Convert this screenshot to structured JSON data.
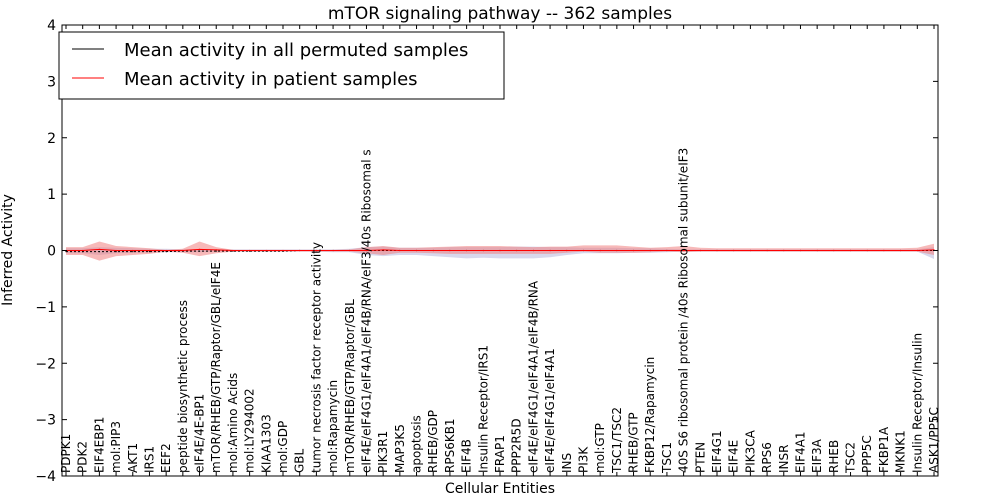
{
  "chart_data": {
    "type": "line",
    "title": "mTOR signaling pathway -- 362 samples",
    "xlabel": "Cellular Entities",
    "ylabel": "Inferred Activity",
    "ylim": [
      -4,
      4
    ],
    "yticks": [
      -4,
      -3,
      -2,
      -1,
      0,
      1,
      2,
      3,
      4
    ],
    "ytick_labels": [
      "−4",
      "−3",
      "−2",
      "−1",
      "0",
      "1",
      "2",
      "3",
      "4"
    ],
    "grid": false,
    "legend_position": "top-left",
    "categories": [
      "PDPK1",
      "PDK2",
      "EIF4EBP1",
      "mol:PIP3",
      "AKT1",
      "IRS1",
      "EEF2",
      "peptide biosynthetic process",
      "eIF4E/4E-BP1",
      "mTOR/RHEB/GTP/Raptor/GBL/eIF4E",
      "mol:Amino Acids",
      "mol:LY294002",
      "KIAA1303",
      "mol:GDP",
      "GBL",
      "tumor necrosis factor receptor activity",
      "mol:Rapamycin",
      "mTOR/RHEB/GTP/Raptor/GBL",
      "eIF4E/eIF4G1/eIF4A1/eIF4B/RNA/eIF3/40s Ribosomal s",
      "PIK3R1",
      "MAP3K5",
      "apoptosis",
      "RHEB/GDP",
      "RPS6KB1",
      "EIF4B",
      "Insulin Receptor/IRS1",
      "FRAP1",
      "PPP2R5D",
      "eIF4E/eIF4G1/eIF4A1/eIF4B/RNA",
      "eIF4E/eIF4G1/eIF4A1",
      "INS",
      "PI3K",
      "mol:GTP",
      "TSC1/TSC2",
      "RHEB/GTP",
      "FKBP12/Rapamycin",
      "TSC1",
      "40S S6 ribosomal protein /40s Ribosomal subunit/eIF3",
      "PTEN",
      "EIF4G1",
      "EIF4E",
      "PIK3CA",
      "RPS6",
      "INSR",
      "EIF4A1",
      "EIF3A",
      "RHEB",
      "TSC2",
      "PPP5C",
      "FKBP1A",
      "MKNK1",
      "Insulin Receptor/Insulin",
      "ASK1/PP5C"
    ],
    "series": [
      {
        "name": "Mean activity in all permuted samples",
        "color": "#000000",
        "values": [
          -0.02,
          -0.02,
          -0.02,
          -0.02,
          -0.02,
          -0.02,
          -0.02,
          -0.01,
          -0.01,
          -0.01,
          -0.01,
          -0.01,
          -0.01,
          -0.01,
          0,
          0,
          0,
          0,
          0,
          0,
          0,
          0,
          0,
          0,
          0,
          0,
          0,
          0,
          0,
          0,
          0,
          0,
          0,
          0,
          0,
          0,
          0,
          0,
          0,
          0,
          0,
          0,
          0,
          0,
          0,
          0,
          0,
          0,
          0,
          0,
          0,
          0,
          0
        ],
        "band": {
          "color": "#7f7fbf",
          "lower": [
            -0.05,
            -0.05,
            -0.08,
            -0.05,
            -0.04,
            -0.03,
            -0.03,
            -0.03,
            -0.03,
            -0.02,
            -0.02,
            -0.02,
            -0.02,
            -0.02,
            -0.02,
            -0.02,
            -0.03,
            -0.03,
            -0.08,
            -0.1,
            -0.08,
            -0.08,
            -0.1,
            -0.12,
            -0.14,
            -0.13,
            -0.14,
            -0.14,
            -0.14,
            -0.12,
            -0.08,
            -0.05,
            -0.05,
            -0.05,
            -0.04,
            -0.04,
            -0.03,
            -0.02,
            -0.02,
            -0.02,
            -0.02,
            -0.02,
            -0.02,
            -0.02,
            -0.02,
            -0.02,
            -0.02,
            -0.02,
            -0.02,
            -0.02,
            -0.02,
            -0.02,
            -0.15
          ],
          "upper": [
            0.04,
            0.04,
            0.06,
            0.05,
            0.04,
            0.03,
            0.03,
            0.02,
            0.02,
            0.02,
            0.02,
            0.02,
            0.02,
            0.02,
            0.02,
            0.02,
            0.02,
            0.03,
            0.06,
            0.07,
            0.05,
            0.05,
            0.05,
            0.06,
            0.06,
            0.06,
            0.06,
            0.07,
            0.07,
            0.06,
            0.06,
            0.05,
            0.05,
            0.05,
            0.04,
            0.04,
            0.03,
            0.02,
            0.02,
            0.02,
            0.02,
            0.02,
            0.02,
            0.02,
            0.02,
            0.02,
            0.02,
            0.02,
            0.02,
            0.02,
            0.02,
            0.02,
            0.06
          ]
        }
      },
      {
        "name": "Mean activity in patient samples",
        "color": "#ff0000",
        "values": [
          0,
          0,
          0.02,
          0,
          0,
          0,
          0,
          0,
          0.02,
          0.01,
          0,
          0,
          0,
          0,
          0,
          0,
          0,
          0,
          0,
          0.01,
          0,
          0,
          0,
          0,
          0,
          0,
          0,
          0,
          0,
          0,
          0,
          0,
          0,
          0,
          0,
          0,
          0,
          0,
          0,
          0,
          0,
          0,
          0,
          0,
          0,
          0,
          0,
          0,
          0,
          0,
          0,
          0,
          0.01
        ],
        "band": {
          "color": "#f08080",
          "lower": [
            -0.08,
            -0.08,
            -0.18,
            -0.1,
            -0.08,
            -0.06,
            -0.02,
            -0.04,
            -0.1,
            -0.05,
            -0.02,
            -0.02,
            -0.02,
            -0.02,
            -0.02,
            -0.02,
            -0.02,
            -0.02,
            -0.05,
            -0.08,
            -0.04,
            -0.04,
            -0.05,
            -0.06,
            -0.06,
            -0.06,
            -0.06,
            -0.06,
            -0.06,
            -0.06,
            -0.04,
            -0.02,
            -0.04,
            -0.04,
            -0.04,
            -0.03,
            -0.02,
            -0.03,
            -0.02,
            -0.02,
            -0.02,
            -0.02,
            -0.02,
            -0.02,
            -0.02,
            -0.02,
            -0.02,
            -0.02,
            -0.02,
            -0.02,
            -0.02,
            -0.02,
            -0.08
          ],
          "upper": [
            0.06,
            0.06,
            0.16,
            0.08,
            0.06,
            0.04,
            0.01,
            0.03,
            0.16,
            0.06,
            0.01,
            0.01,
            0.01,
            0.01,
            0.01,
            0.01,
            0.01,
            0.02,
            0.06,
            0.08,
            0.05,
            0.05,
            0.06,
            0.07,
            0.08,
            0.08,
            0.08,
            0.07,
            0.06,
            0.07,
            0.07,
            0.09,
            0.09,
            0.09,
            0.07,
            0.05,
            0.06,
            0.08,
            0.05,
            0.04,
            0.04,
            0.04,
            0.04,
            0.04,
            0.04,
            0.04,
            0.04,
            0.04,
            0.04,
            0.04,
            0.04,
            0.05,
            0.12
          ]
        }
      }
    ]
  }
}
